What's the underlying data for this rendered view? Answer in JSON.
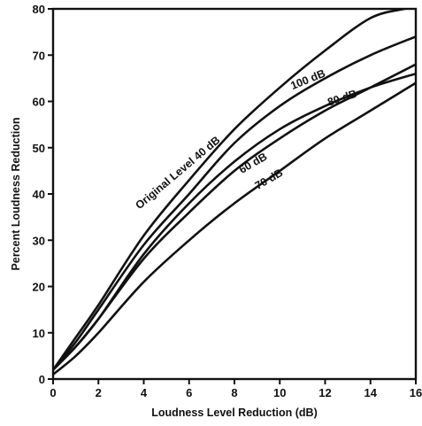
{
  "chart_data": {
    "type": "line",
    "title": "",
    "xlabel": "Loudness Level Reduction (dB)",
    "ylabel": "Percent Loudness Reduction",
    "xlim": [
      0,
      16
    ],
    "ylim": [
      0,
      80
    ],
    "x_ticks": [
      "0",
      "2",
      "4",
      "6",
      "8",
      "10",
      "12",
      "14",
      "16"
    ],
    "y_ticks": [
      "0",
      "10",
      "20",
      "30",
      "40",
      "50",
      "60",
      "70",
      "80"
    ],
    "grid": false,
    "series": [
      {
        "name": "Original Level 40 dB",
        "x": [
          0,
          1,
          2,
          4,
          6,
          8,
          10,
          12,
          14,
          15.5
        ],
        "y": [
          2,
          9,
          16,
          31,
          43,
          54,
          63,
          71,
          78,
          81
        ]
      },
      {
        "name": "100 dB",
        "x": [
          0,
          1,
          2,
          4,
          6,
          8,
          10,
          12,
          14,
          16
        ],
        "y": [
          2,
          8,
          15,
          29,
          40,
          51,
          59,
          65,
          70,
          74
        ]
      },
      {
        "name": "80 dB",
        "x": [
          0,
          1,
          2,
          4,
          6,
          8,
          10,
          12,
          14,
          16
        ],
        "y": [
          2,
          7,
          13,
          27,
          38,
          47,
          54,
          59,
          63,
          66
        ]
      },
      {
        "name": "60 dB",
        "x": [
          0,
          1,
          2,
          4,
          6,
          8,
          10,
          12,
          14,
          16
        ],
        "y": [
          2,
          7,
          13,
          26,
          36,
          45,
          52,
          58,
          63,
          68
        ]
      },
      {
        "name": "70 dB",
        "x": [
          0,
          1,
          2,
          4,
          6,
          8,
          10,
          12,
          14,
          16
        ],
        "y": [
          1,
          5,
          10,
          21,
          30,
          38,
          45,
          52,
          58,
          64
        ]
      }
    ]
  }
}
